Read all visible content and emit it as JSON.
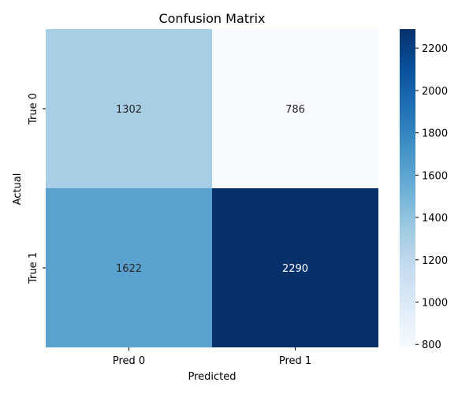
{
  "chart_data": {
    "type": "heatmap",
    "title": "Confusion Matrix",
    "xlabel": "Predicted",
    "ylabel": "Actual",
    "x_categories": [
      "Pred 0",
      "Pred 1"
    ],
    "y_categories": [
      "True 0",
      "True 1"
    ],
    "values": [
      [
        1302,
        786
      ],
      [
        1622,
        2290
      ]
    ],
    "colorbar": {
      "min": 786,
      "max": 2290,
      "ticks": [
        800,
        1000,
        1200,
        1400,
        1600,
        1800,
        2000,
        2200
      ],
      "colormap": "Blues"
    }
  }
}
